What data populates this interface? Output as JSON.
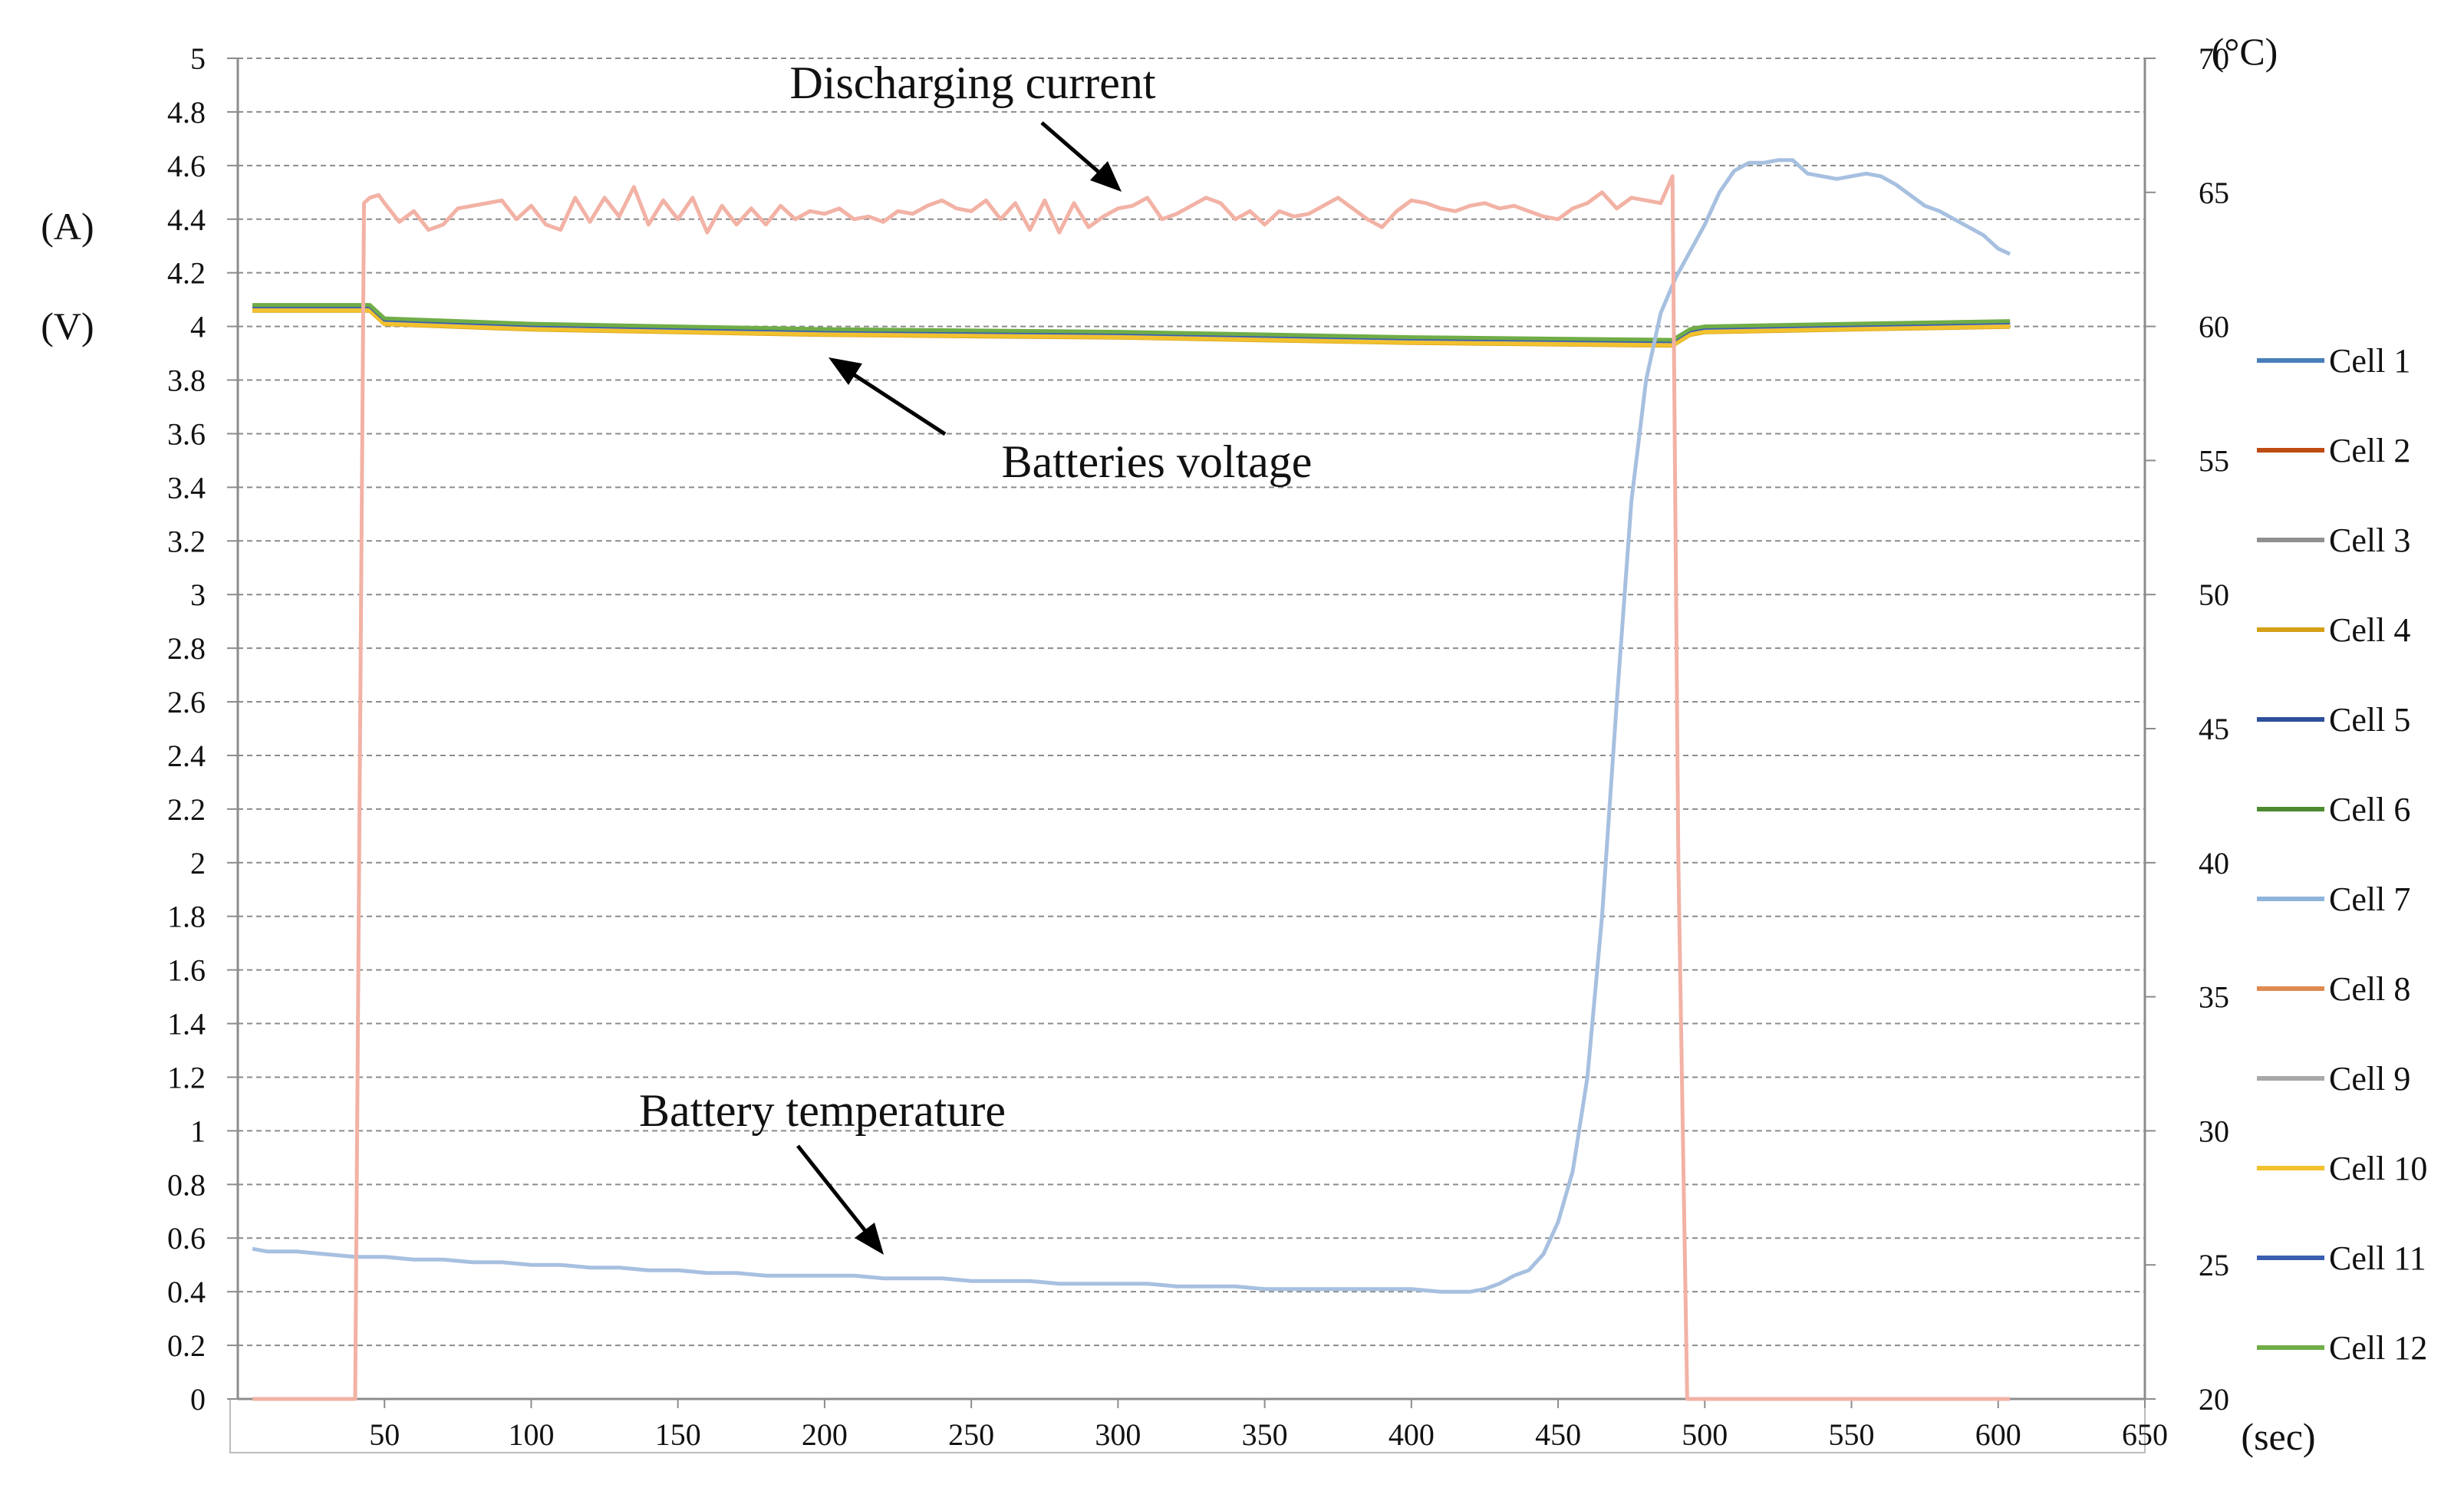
{
  "chart_data": {
    "type": "line",
    "title": "",
    "xlabel": "(sec)",
    "ylabel_left": [
      "(A)",
      "(V)"
    ],
    "ylabel_right": "(°C)",
    "grid": "horizontal dashed",
    "xlim": [
      0,
      650
    ],
    "ylim_left": [
      0,
      5
    ],
    "ylim_right": [
      20,
      70
    ],
    "x_ticks": [
      "50",
      "100",
      "150",
      "200",
      "250",
      "300",
      "350",
      "400",
      "450",
      "500",
      "550",
      "600",
      "650"
    ],
    "y_left_ticks": [
      "0",
      "0.2",
      "0.4",
      "0.6",
      "0.8",
      "1",
      "1.2",
      "1.4",
      "1.6",
      "1.8",
      "2",
      "2.2",
      "2.4",
      "2.6",
      "2.8",
      "3",
      "3.2",
      "3.4",
      "3.6",
      "3.8",
      "4",
      "4.2",
      "4.4",
      "4.6",
      "4.8",
      "5"
    ],
    "y_right_ticks": [
      "20",
      "25",
      "30",
      "35",
      "40",
      "45",
      "50",
      "55",
      "60",
      "65",
      "70"
    ],
    "annotations": [
      "Discharging current",
      "Batteries voltage",
      "Battery temperature"
    ],
    "legend_position": "right",
    "legend": [
      {
        "name": "Cell 1",
        "color": "#4a7ebb"
      },
      {
        "name": "Cell 2",
        "color": "#be4b13"
      },
      {
        "name": "Cell 3",
        "color": "#909090"
      },
      {
        "name": "Cell 4",
        "color": "#d4a017"
      },
      {
        "name": "Cell 5",
        "color": "#2e4f9a"
      },
      {
        "name": "Cell 6",
        "color": "#4d8b31"
      },
      {
        "name": "Cell 7",
        "color": "#8fb4dc"
      },
      {
        "name": "Cell 8",
        "color": "#e08a50"
      },
      {
        "name": "Cell 9",
        "color": "#a8a8a8"
      },
      {
        "name": "Cell 10",
        "color": "#f2c12e"
      },
      {
        "name": "Cell 11",
        "color": "#3a5fb0"
      },
      {
        "name": "Cell 12",
        "color": "#70ad47"
      }
    ],
    "series": [
      {
        "name": "Discharging current",
        "axis": "left",
        "unit": "A",
        "color": "#f2b2a5",
        "x": [
          5,
          40,
          43,
          45,
          48,
          50,
          55,
          60,
          65,
          70,
          75,
          80,
          85,
          90,
          95,
          100,
          105,
          110,
          115,
          120,
          125,
          130,
          135,
          140,
          145,
          150,
          155,
          160,
          165,
          170,
          175,
          180,
          185,
          190,
          195,
          200,
          205,
          210,
          215,
          220,
          225,
          230,
          235,
          240,
          245,
          250,
          255,
          260,
          265,
          270,
          275,
          280,
          285,
          290,
          295,
          300,
          305,
          310,
          315,
          320,
          325,
          330,
          335,
          340,
          345,
          350,
          355,
          360,
          365,
          370,
          375,
          380,
          385,
          390,
          395,
          400,
          405,
          410,
          415,
          420,
          425,
          430,
          435,
          440,
          445,
          450,
          455,
          460,
          465,
          470,
          475,
          480,
          485,
          489,
          491,
          494,
          497,
          550,
          604
        ],
        "values": [
          0,
          0,
          4.46,
          4.48,
          4.49,
          4.46,
          4.39,
          4.43,
          4.36,
          4.38,
          4.44,
          4.45,
          4.46,
          4.47,
          4.4,
          4.45,
          4.38,
          4.36,
          4.48,
          4.39,
          4.48,
          4.41,
          4.52,
          4.38,
          4.47,
          4.4,
          4.48,
          4.35,
          4.45,
          4.38,
          4.44,
          4.38,
          4.45,
          4.4,
          4.43,
          4.42,
          4.44,
          4.4,
          4.41,
          4.39,
          4.43,
          4.42,
          4.45,
          4.47,
          4.44,
          4.43,
          4.47,
          4.4,
          4.46,
          4.36,
          4.47,
          4.35,
          4.46,
          4.37,
          4.41,
          4.44,
          4.45,
          4.48,
          4.4,
          4.42,
          4.45,
          4.48,
          4.46,
          4.4,
          4.43,
          4.38,
          4.43,
          4.41,
          4.42,
          4.45,
          4.48,
          4.44,
          4.4,
          4.37,
          4.43,
          4.47,
          4.46,
          4.44,
          4.43,
          4.45,
          4.46,
          4.44,
          4.45,
          4.43,
          4.41,
          4.4,
          4.44,
          4.46,
          4.5,
          4.44,
          4.48,
          4.47,
          4.46,
          4.56,
          2.0,
          0,
          0,
          0,
          0
        ]
      },
      {
        "name": "Battery temperature",
        "axis": "right",
        "unit": "°C",
        "color": "#a7c0e0",
        "x": [
          5,
          10,
          20,
          30,
          40,
          50,
          60,
          70,
          80,
          90,
          100,
          110,
          120,
          130,
          140,
          150,
          160,
          170,
          180,
          190,
          200,
          210,
          220,
          230,
          240,
          250,
          260,
          270,
          280,
          290,
          300,
          310,
          320,
          330,
          340,
          350,
          360,
          370,
          380,
          390,
          400,
          410,
          420,
          425,
          430,
          435,
          440,
          445,
          450,
          455,
          460,
          465,
          470,
          475,
          480,
          485,
          490,
          495,
          500,
          505,
          510,
          515,
          520,
          525,
          530,
          535,
          540,
          545,
          550,
          555,
          560,
          565,
          570,
          575,
          580,
          585,
          590,
          595,
          600,
          604
        ],
        "values": [
          25.6,
          25.5,
          25.5,
          25.4,
          25.3,
          25.3,
          25.2,
          25.2,
          25.1,
          25.1,
          25.0,
          25.0,
          24.9,
          24.9,
          24.8,
          24.8,
          24.7,
          24.7,
          24.6,
          24.6,
          24.6,
          24.6,
          24.5,
          24.5,
          24.5,
          24.4,
          24.4,
          24.4,
          24.3,
          24.3,
          24.3,
          24.3,
          24.2,
          24.2,
          24.2,
          24.1,
          24.1,
          24.1,
          24.1,
          24.1,
          24.1,
          24.0,
          24.0,
          24.1,
          24.3,
          24.6,
          24.8,
          25.4,
          26.6,
          28.5,
          32.0,
          38.0,
          46.0,
          53.5,
          58.0,
          60.5,
          61.8,
          62.8,
          63.8,
          65.0,
          65.8,
          66.1,
          66.1,
          66.2,
          66.2,
          65.7,
          65.6,
          65.5,
          65.6,
          65.7,
          65.6,
          65.3,
          64.9,
          64.5,
          64.3,
          64.0,
          63.7,
          63.4,
          62.9,
          62.7
        ]
      },
      {
        "name": "Batteries voltage (cells 1–12)",
        "axis": "left",
        "unit": "V",
        "color": "#4d8b31",
        "x": [
          5,
          40,
          45,
          50,
          100,
          200,
          300,
          400,
          489,
          495,
          500,
          550,
          604
        ],
        "values": [
          4.07,
          4.07,
          4.07,
          4.02,
          4.0,
          3.98,
          3.97,
          3.95,
          3.94,
          3.98,
          3.99,
          4.0,
          4.01
        ]
      }
    ]
  }
}
